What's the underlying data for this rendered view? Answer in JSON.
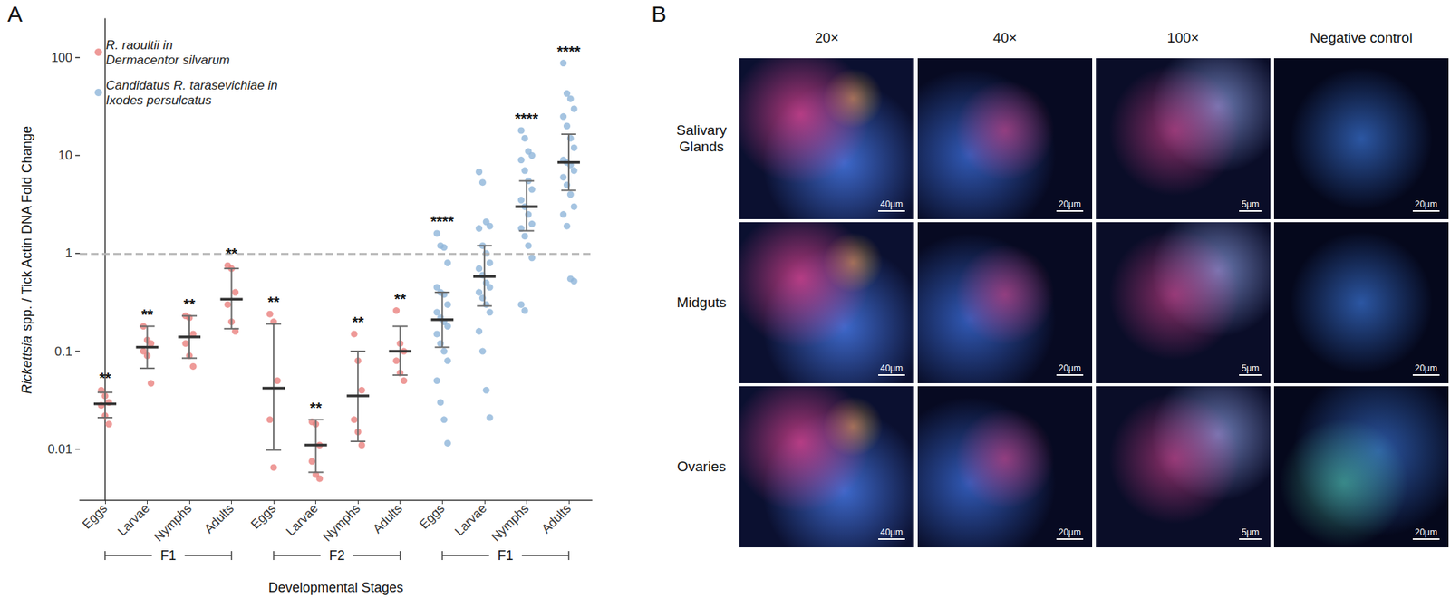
{
  "chart_data": {
    "type": "scatter",
    "panel_label": "A",
    "categories": [
      "Eggs",
      "Larvae",
      "Nymphs",
      "Adults",
      "Eggs",
      "Larvae",
      "Nymphs",
      "Adults",
      "Eggs",
      "Larvae",
      "Nymphs",
      "Adults"
    ],
    "groups": [
      {
        "label": "F1",
        "from": 0,
        "to": 3
      },
      {
        "label": "F2",
        "from": 4,
        "to": 7
      },
      {
        "label": "F1",
        "from": 8,
        "to": 11
      }
    ],
    "x_label": "Developmental Stages",
    "y_label": "Rickettsia spp. / Tick Actin DNA Fold Change",
    "log": "y",
    "ylim": [
      0.003,
      250
    ],
    "yticks": [
      0.01,
      0.1,
      1,
      10,
      100
    ],
    "reference_line": 1,
    "legend": "upper left",
    "grid": false,
    "series": [
      {
        "name": "R. raoultii in\nDermacentor silvarum",
        "color": "#ea817e",
        "marker": "circle",
        "groups": [
          {
            "category": 0,
            "values": [
              0.04,
              0.035,
              0.03,
              0.028,
              0.022,
              0.018
            ],
            "mean": 0.029,
            "error_low": 0.021,
            "error_high": 0.038,
            "significance": "**"
          },
          {
            "category": 1,
            "values": [
              0.18,
              0.13,
              0.12,
              0.1,
              0.09,
              0.047
            ],
            "mean": 0.11,
            "error_low": 0.067,
            "error_high": 0.18,
            "significance": "**"
          },
          {
            "category": 2,
            "values": [
              0.23,
              0.22,
              0.15,
              0.12,
              0.09,
              0.07
            ],
            "mean": 0.14,
            "error_low": 0.085,
            "error_high": 0.23,
            "significance": "**"
          },
          {
            "category": 3,
            "values": [
              0.75,
              0.7,
              0.4,
              0.3,
              0.2,
              0.16
            ],
            "mean": 0.34,
            "error_low": 0.17,
            "error_high": 0.7,
            "significance": "**"
          },
          {
            "category": 4,
            "values": [
              0.24,
              0.2,
              0.05,
              0.02,
              0.0065
            ],
            "mean": 0.042,
            "error_low": 0.0098,
            "error_high": 0.19,
            "significance": "**"
          },
          {
            "category": 5,
            "values": [
              0.019,
              0.018,
              0.011,
              0.0075,
              0.0055,
              0.005
            ],
            "mean": 0.011,
            "error_low": 0.0058,
            "error_high": 0.02,
            "significance": "**"
          },
          {
            "category": 6,
            "values": [
              0.15,
              0.08,
              0.04,
              0.02,
              0.015,
              0.011
            ],
            "mean": 0.035,
            "error_low": 0.012,
            "error_high": 0.1,
            "significance": "**"
          },
          {
            "category": 7,
            "values": [
              0.26,
              0.12,
              0.1,
              0.08,
              0.06,
              0.05
            ],
            "mean": 0.1,
            "error_low": 0.057,
            "error_high": 0.18,
            "significance": "**"
          }
        ]
      },
      {
        "name": "Candidatus R. tarasevichiae in\nIxodes persulcatus",
        "color": "#8fb5d9",
        "marker": "circle",
        "groups": [
          {
            "category": 8,
            "values": [
              1.6,
              1.2,
              1.15,
              0.8,
              0.45,
              0.4,
              0.38,
              0.3,
              0.25,
              0.22,
              0.2,
              0.18,
              0.15,
              0.12,
              0.1,
              0.08,
              0.05,
              0.03,
              0.02,
              0.0115
            ],
            "mean": 0.21,
            "error_low": 0.11,
            "error_high": 0.4,
            "significance": "****"
          },
          {
            "category": 9,
            "values": [
              6.8,
              5.3,
              2.1,
              1.9,
              1.8,
              1.2,
              1.0,
              0.8,
              0.7,
              0.6,
              0.5,
              0.45,
              0.4,
              0.35,
              0.3,
              0.25,
              0.16,
              0.1,
              0.04,
              0.021
            ],
            "mean": 0.58,
            "error_low": 0.29,
            "error_high": 1.2,
            "significance": null
          },
          {
            "category": 10,
            "values": [
              18,
              15,
              11,
              10,
              9,
              7,
              5.5,
              4.5,
              3.5,
              3,
              2.5,
              2,
              1.8,
              1.5,
              1.2,
              0.9,
              0.3,
              0.26
            ],
            "mean": 3.0,
            "error_low": 1.7,
            "error_high": 5.5,
            "significance": "****"
          },
          {
            "category": 11,
            "values": [
              88,
              43,
              38,
              30,
              25,
              20,
              15,
              12,
              9,
              8.5,
              8,
              7,
              6,
              5,
              4,
              3,
              2.5,
              1.9,
              0.55,
              0.52
            ],
            "mean": 8.5,
            "error_low": 4.4,
            "error_high": 16.5,
            "significance": "****"
          }
        ]
      }
    ]
  },
  "panel_b": {
    "panel_label": "B",
    "columns": [
      "20×",
      "40×",
      "100×",
      "Negative control"
    ],
    "rows": [
      {
        "label": "Salivary Glands",
        "scale_bars": [
          "40μm",
          "20μm",
          "5μm",
          "20μm"
        ]
      },
      {
        "label": "Midguts",
        "scale_bars": [
          "40μm",
          "20μm",
          "5μm",
          "20μm"
        ]
      },
      {
        "label": "Ovaries",
        "scale_bars": [
          "40μm",
          "20μm",
          "5μm",
          "20μm"
        ]
      }
    ]
  }
}
